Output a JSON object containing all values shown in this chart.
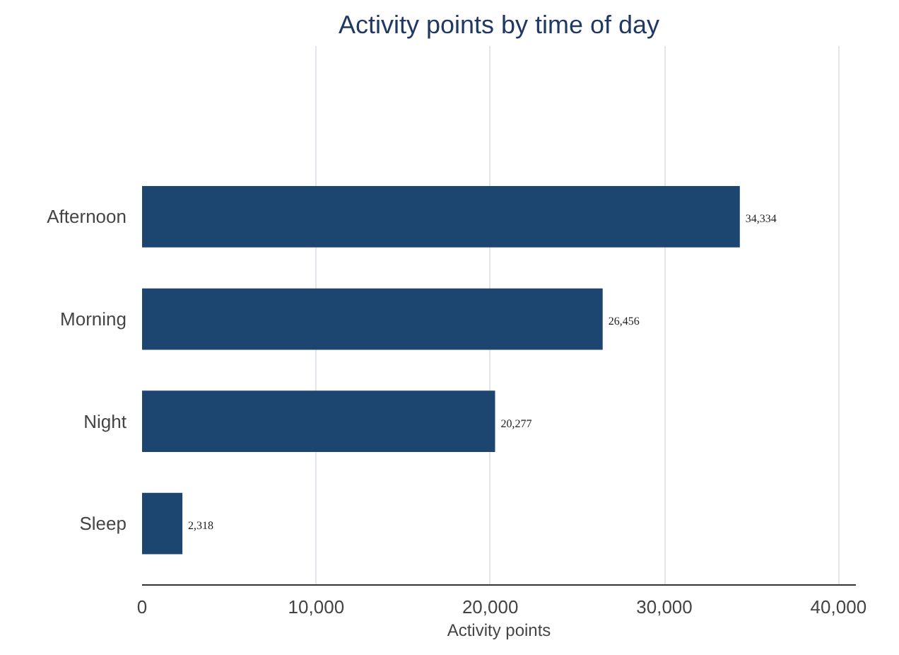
{
  "chart_data": {
    "type": "bar",
    "orientation": "horizontal",
    "title": "Activity points by time of day",
    "xlabel": "Activity points",
    "categories": [
      "Afternoon",
      "Morning",
      "Night",
      "Sleep"
    ],
    "values": [
      34334,
      26456,
      20277,
      2318
    ],
    "color": "#1c4670",
    "xlim": [
      0,
      41000
    ],
    "xticks": [
      {
        "value": 0,
        "label": "0"
      },
      {
        "value": 10000,
        "label": "10,000"
      },
      {
        "value": 20000,
        "label": "20,000"
      },
      {
        "value": 30000,
        "label": "30,000"
      },
      {
        "value": 40000,
        "label": "40,000"
      }
    ],
    "grid": "x",
    "value_labels": [
      "34,334",
      "26,456",
      "20,277",
      "2,318"
    ]
  }
}
